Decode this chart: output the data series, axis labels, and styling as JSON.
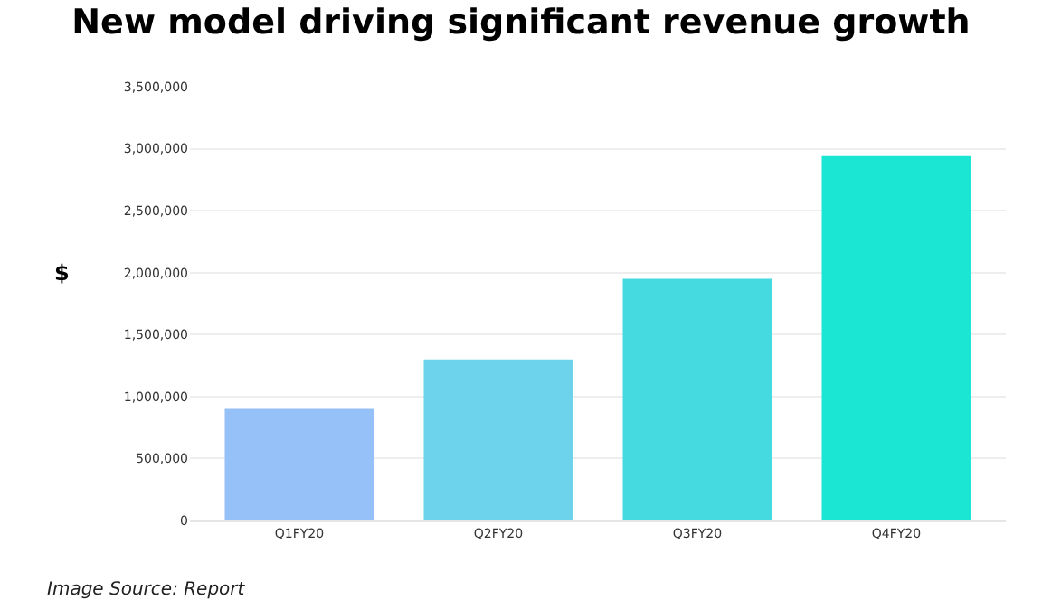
{
  "chart_data": {
    "type": "bar",
    "title": "New model driving significant revenue growth",
    "categories": [
      "Q1FY20",
      "Q2FY20",
      "Q3FY20",
      "Q4FY20"
    ],
    "values": [
      900000,
      1300000,
      1950000,
      2940000
    ],
    "colors": [
      "#96c0f8",
      "#6dd2ec",
      "#45dae0",
      "#1be6d3"
    ],
    "ylabel": "$",
    "ylim": [
      0,
      3500000
    ],
    "yticks": [
      {
        "value": 0,
        "label": "0"
      },
      {
        "value": 500000,
        "label": "500,000"
      },
      {
        "value": 1000000,
        "label": "1,000,000"
      },
      {
        "value": 1500000,
        "label": "1,500,000"
      },
      {
        "value": 2000000,
        "label": "2,000,000"
      },
      {
        "value": 2500000,
        "label": "2,500,000"
      },
      {
        "value": 3000000,
        "label": "3,000,000"
      },
      {
        "value": 3500000,
        "label": "3,500,000"
      }
    ],
    "grid": "y",
    "annotations": [
      "Image Source: Report"
    ]
  }
}
